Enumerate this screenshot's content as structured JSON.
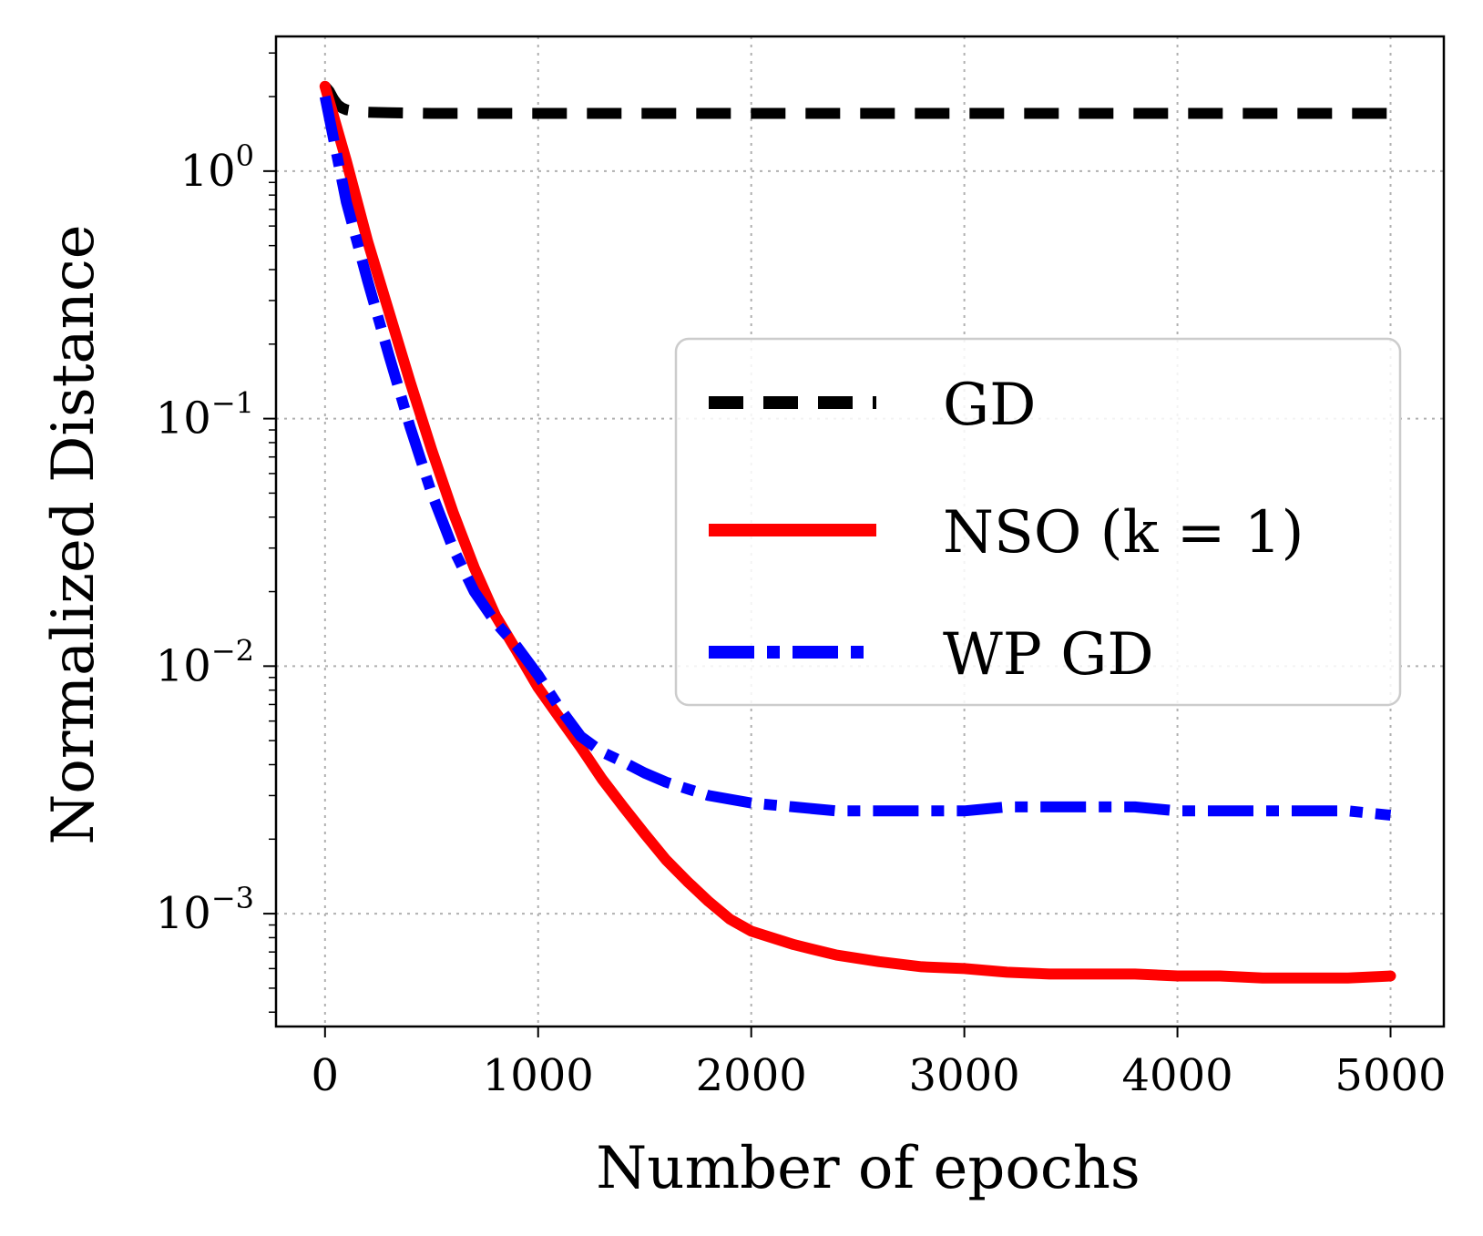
{
  "chart_data": {
    "type": "line",
    "title": "",
    "xlabel": "Number of epochs",
    "ylabel": "Normalized Distance",
    "xlim": [
      -230,
      5250
    ],
    "ylim": [
      0.00035,
      3.5
    ],
    "yscale": "log",
    "grid": true,
    "x_ticks": [
      0,
      1000,
      2000,
      3000,
      4000,
      5000
    ],
    "x_tick_labels": [
      "0",
      "1000",
      "2000",
      "3000",
      "4000",
      "5000"
    ],
    "y_ticks": [
      {
        "value": 1,
        "base": "10",
        "exp": "0"
      },
      {
        "value": 0.1,
        "base": "10",
        "exp": "−1"
      },
      {
        "value": 0.01,
        "base": "10",
        "exp": "−2"
      },
      {
        "value": 0.001,
        "base": "10",
        "exp": "−3"
      }
    ],
    "legend_position": "center-right",
    "series": [
      {
        "name": "GD",
        "color": "#000000",
        "style": "dashed",
        "x": [
          0,
          20,
          40,
          60,
          80,
          100,
          150,
          200,
          300,
          500,
          1000,
          2000,
          3000,
          4000,
          5000
        ],
        "y": [
          2.2,
          2.1,
          1.95,
          1.85,
          1.8,
          1.77,
          1.74,
          1.73,
          1.72,
          1.71,
          1.71,
          1.71,
          1.71,
          1.71,
          1.71
        ]
      },
      {
        "name": "NSO (k = 1)",
        "color": "#ff0000",
        "style": "solid",
        "x": [
          0,
          100,
          200,
          300,
          400,
          500,
          600,
          700,
          800,
          900,
          1000,
          1100,
          1200,
          1300,
          1400,
          1500,
          1600,
          1700,
          1800,
          1900,
          2000,
          2200,
          2400,
          2600,
          2800,
          3000,
          3200,
          3400,
          3600,
          3800,
          4000,
          4200,
          4400,
          4600,
          4800,
          5000
        ],
        "y": [
          2.2,
          1.1,
          0.52,
          0.27,
          0.14,
          0.075,
          0.042,
          0.025,
          0.016,
          0.0115,
          0.0082,
          0.0062,
          0.0047,
          0.0035,
          0.0027,
          0.0021,
          0.00165,
          0.00135,
          0.00112,
          0.00095,
          0.00085,
          0.00075,
          0.00068,
          0.00064,
          0.00061,
          0.0006,
          0.00058,
          0.00057,
          0.00057,
          0.00057,
          0.00056,
          0.00056,
          0.00055,
          0.00055,
          0.00055,
          0.00056
        ]
      },
      {
        "name": "WP GD",
        "color": "#0000ff",
        "style": "dashdot",
        "x": [
          0,
          100,
          200,
          300,
          400,
          500,
          600,
          700,
          800,
          900,
          1000,
          1100,
          1200,
          1300,
          1400,
          1500,
          1600,
          1800,
          2000,
          2200,
          2400,
          2600,
          2800,
          3000,
          3200,
          3400,
          3600,
          3800,
          4000,
          4200,
          4400,
          4600,
          4800,
          5000
        ],
        "y": [
          2.0,
          0.75,
          0.36,
          0.18,
          0.092,
          0.05,
          0.03,
          0.02,
          0.015,
          0.012,
          0.0092,
          0.0068,
          0.0052,
          0.0045,
          0.0041,
          0.0037,
          0.0034,
          0.003,
          0.0028,
          0.0027,
          0.0026,
          0.0026,
          0.0026,
          0.0026,
          0.0027,
          0.0027,
          0.0027,
          0.0027,
          0.0026,
          0.0026,
          0.0026,
          0.0026,
          0.0026,
          0.0025
        ]
      }
    ]
  }
}
